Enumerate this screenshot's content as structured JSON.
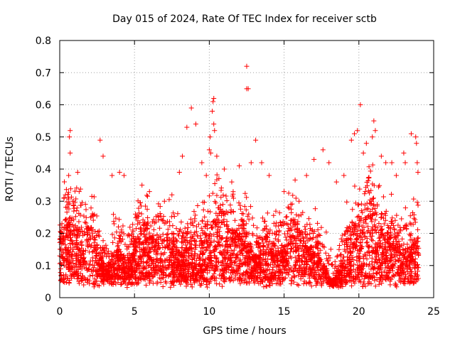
{
  "chart_data": {
    "type": "scatter",
    "title": "Day 015 of 2024, Rate Of TEC Index for receiver sctb",
    "xlabel": "GPS time / hours",
    "ylabel": "ROTI / TECUs",
    "xlim": [
      0,
      25
    ],
    "ylim": [
      0,
      0.8
    ],
    "xticks": [
      "0",
      "5",
      "10",
      "15",
      "20",
      "25"
    ],
    "yticks": [
      "0",
      "0.1",
      "0.2",
      "0.3",
      "0.4",
      "0.5",
      "0.6",
      "0.7",
      "0.8"
    ],
    "grid": true,
    "marker": "plus",
    "color": "#ff0000",
    "series": [
      {
        "name": "ROTI",
        "points": [
          [
            0.1,
            0.18
          ],
          [
            0.3,
            0.22
          ],
          [
            0.6,
            0.38
          ],
          [
            0.65,
            0.5
          ],
          [
            0.7,
            0.52
          ],
          [
            0.7,
            0.45
          ],
          [
            0.9,
            0.3
          ],
          [
            1.2,
            0.39
          ],
          [
            1.3,
            0.33
          ],
          [
            2.7,
            0.49
          ],
          [
            2.9,
            0.44
          ],
          [
            3.5,
            0.38
          ],
          [
            4.0,
            0.39
          ],
          [
            4.3,
            0.38
          ],
          [
            5.5,
            0.35
          ],
          [
            6.0,
            0.33
          ],
          [
            7.0,
            0.3
          ],
          [
            7.5,
            0.32
          ],
          [
            8.0,
            0.39
          ],
          [
            8.2,
            0.44
          ],
          [
            8.5,
            0.53
          ],
          [
            8.8,
            0.59
          ],
          [
            9.1,
            0.54
          ],
          [
            9.5,
            0.42
          ],
          [
            9.8,
            0.38
          ],
          [
            10.0,
            0.46
          ],
          [
            10.05,
            0.5
          ],
          [
            10.1,
            0.45
          ],
          [
            10.2,
            0.58
          ],
          [
            10.25,
            0.61
          ],
          [
            10.3,
            0.62
          ],
          [
            10.3,
            0.54
          ],
          [
            10.35,
            0.52
          ],
          [
            10.5,
            0.44
          ],
          [
            11.0,
            0.4
          ],
          [
            11.5,
            0.36
          ],
          [
            12.0,
            0.41
          ],
          [
            12.5,
            0.72
          ],
          [
            12.5,
            0.65
          ],
          [
            12.6,
            0.65
          ],
          [
            12.8,
            0.42
          ],
          [
            13.1,
            0.49
          ],
          [
            13.5,
            0.42
          ],
          [
            14.0,
            0.38
          ],
          [
            15.0,
            0.33
          ],
          [
            16.0,
            0.3
          ],
          [
            16.5,
            0.38
          ],
          [
            17.0,
            0.43
          ],
          [
            17.6,
            0.46
          ],
          [
            18.0,
            0.42
          ],
          [
            18.5,
            0.36
          ],
          [
            19.0,
            0.38
          ],
          [
            19.5,
            0.49
          ],
          [
            19.7,
            0.51
          ],
          [
            19.9,
            0.52
          ],
          [
            20.1,
            0.6
          ],
          [
            20.3,
            0.45
          ],
          [
            20.5,
            0.48
          ],
          [
            20.9,
            0.5
          ],
          [
            21.0,
            0.55
          ],
          [
            21.1,
            0.52
          ],
          [
            21.5,
            0.44
          ],
          [
            21.8,
            0.42
          ],
          [
            22.2,
            0.42
          ],
          [
            22.5,
            0.38
          ],
          [
            23.0,
            0.45
          ],
          [
            23.1,
            0.42
          ],
          [
            23.5,
            0.51
          ],
          [
            23.8,
            0.5
          ],
          [
            23.85,
            0.48
          ],
          [
            23.9,
            0.42
          ],
          [
            23.95,
            0.39
          ]
        ]
      }
    ]
  }
}
